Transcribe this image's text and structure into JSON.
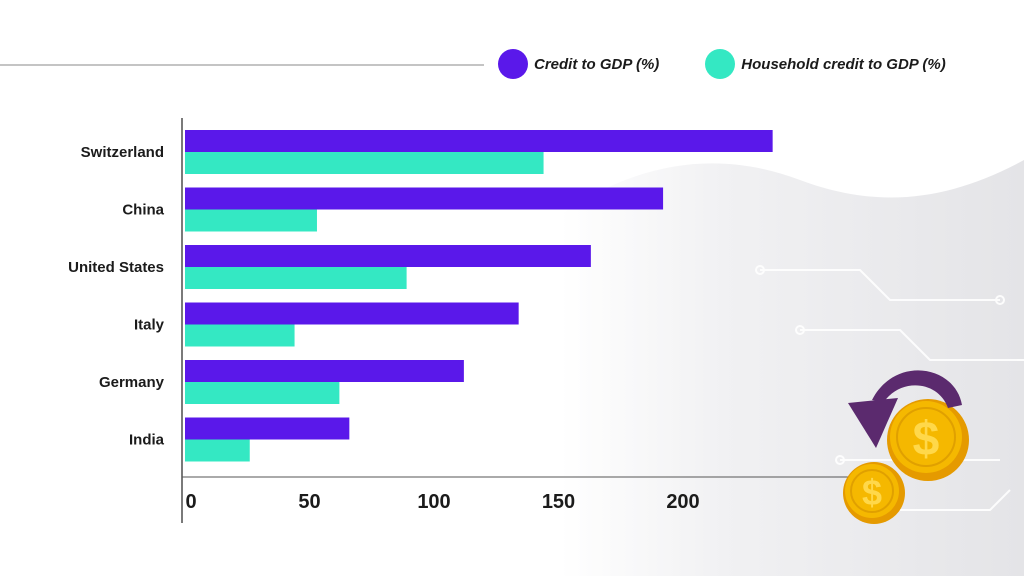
{
  "legend": [
    {
      "name": "Credit to GDP (%)",
      "color": "#5a18ea"
    },
    {
      "name": "Household credit to GDP (%)",
      "color": "#34e8c3"
    }
  ],
  "decoration": {
    "coin_symbol": "$",
    "coin_color": "#f5b800",
    "arrow_color": "#5b2a6e"
  },
  "chart_data": {
    "type": "bar",
    "orientation": "horizontal",
    "categories": [
      "Switzerland",
      "China",
      "United States",
      "Italy",
      "Germany",
      "India"
    ],
    "series": [
      {
        "name": "Credit to GDP (%)",
        "values": [
          236,
          192,
          163,
          134,
          112,
          66
        ]
      },
      {
        "name": "Household credit to GDP (%)",
        "values": [
          144,
          53,
          89,
          44,
          62,
          26
        ]
      }
    ],
    "xticks": [
      0,
      50,
      100,
      150,
      200
    ],
    "xlim": [
      0,
      236
    ],
    "grid": false,
    "legend_position": "top-right",
    "title": "",
    "xlabel": "",
    "ylabel": ""
  }
}
